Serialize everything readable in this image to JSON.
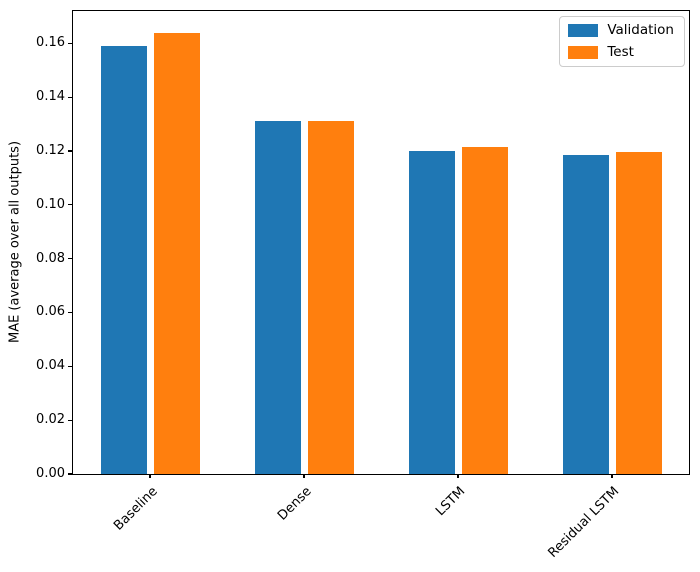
{
  "chart_data": {
    "type": "bar",
    "title": "",
    "categories": [
      "Baseline",
      "Dense",
      "LSTM",
      "Residual LSTM"
    ],
    "series": [
      {
        "name": "Validation",
        "color": "#1f77b4",
        "values": [
          0.159,
          0.131,
          0.12,
          0.1185
        ]
      },
      {
        "name": "Test",
        "color": "#ff7f0e",
        "values": [
          0.164,
          0.131,
          0.1215,
          0.1195
        ]
      }
    ],
    "xlabel": "",
    "ylabel": "MAE (average over all outputs)",
    "ylim": [
      0,
      0.172
    ],
    "yticks": [
      0.0,
      0.02,
      0.04,
      0.06,
      0.08,
      0.1,
      0.12,
      0.14,
      0.16
    ],
    "ytick_decimals": 2,
    "grid": false,
    "xtick_rotation": 45,
    "legend": {
      "position": "upper-right",
      "entries": [
        "Validation",
        "Test"
      ]
    }
  }
}
